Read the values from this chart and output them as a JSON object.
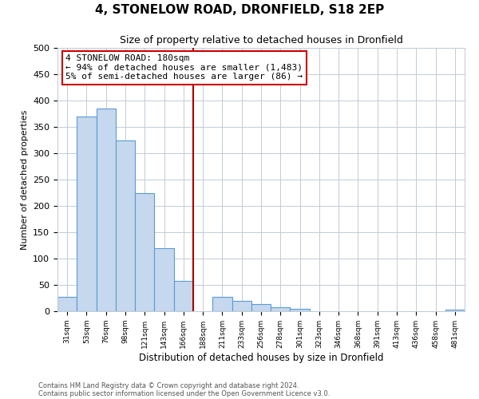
{
  "title": "4, STONELOW ROAD, DRONFIELD, S18 2EP",
  "subtitle": "Size of property relative to detached houses in Dronfield",
  "xlabel": "Distribution of detached houses by size in Dronfield",
  "ylabel": "Number of detached properties",
  "bar_color": "#c5d8ed",
  "bar_edge_color": "#5b9bd5",
  "bin_labels": [
    "31sqm",
    "53sqm",
    "76sqm",
    "98sqm",
    "121sqm",
    "143sqm",
    "166sqm",
    "188sqm",
    "211sqm",
    "233sqm",
    "256sqm",
    "278sqm",
    "301sqm",
    "323sqm",
    "346sqm",
    "368sqm",
    "391sqm",
    "413sqm",
    "436sqm",
    "458sqm",
    "481sqm"
  ],
  "bar_heights": [
    27,
    370,
    385,
    325,
    225,
    120,
    58,
    0,
    27,
    20,
    14,
    7,
    5,
    0,
    0,
    0,
    0,
    0,
    0,
    0,
    3
  ],
  "vline_x": 7,
  "vline_color": "#aa0000",
  "ylim": [
    0,
    500
  ],
  "yticks": [
    0,
    50,
    100,
    150,
    200,
    250,
    300,
    350,
    400,
    450,
    500
  ],
  "annotation_title": "4 STONELOW ROAD: 180sqm",
  "annotation_line1": "← 94% of detached houses are smaller (1,483)",
  "annotation_line2": "5% of semi-detached houses are larger (86) →",
  "footer1": "Contains HM Land Registry data © Crown copyright and database right 2024.",
  "footer2": "Contains public sector information licensed under the Open Government Licence v3.0.",
  "background_color": "#ffffff",
  "grid_color": "#c0ccd8"
}
